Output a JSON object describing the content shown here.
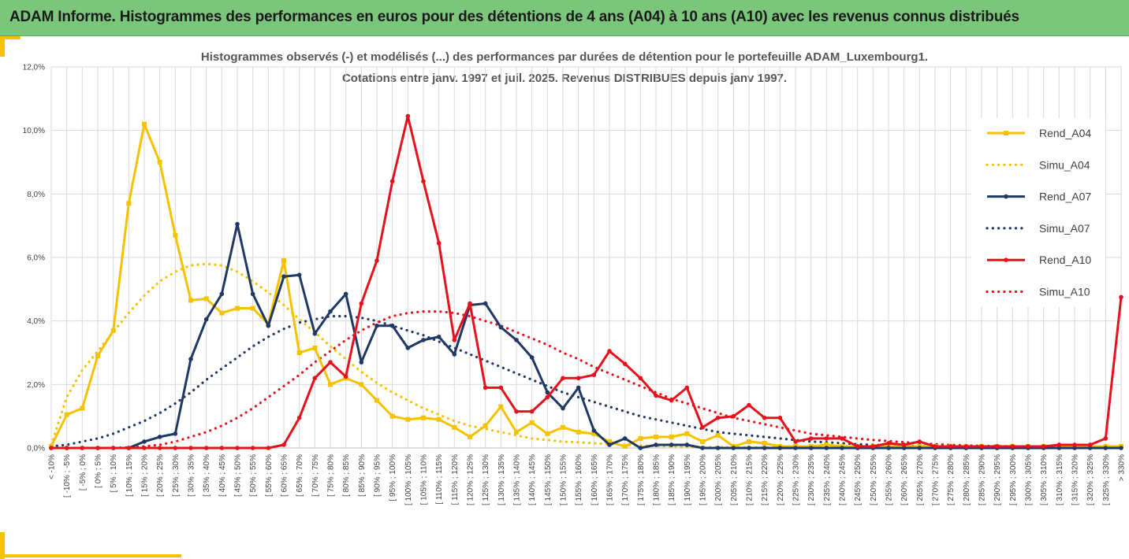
{
  "banner": {
    "title": "ADAM Informe. Histogrammes des performances en euros pour des détentions de 4 ans (A04) à 10 ans (A10) avec les revenus connus distribués"
  },
  "colors": {
    "banner_bg": "#7bc67b",
    "accent": "#f6c200",
    "A04": "#f6c200",
    "A07": "#1f3864",
    "A10": "#e8101a",
    "grid": "#d9d9d9"
  },
  "chart_data": {
    "type": "line",
    "title": "Histogrammes observés (-) et modélisés (...) des performances par durées de détention pour le portefeuille ADAM_Luxembourg1.",
    "subtitle": "Cotations entre janv. 1997 et juil. 2025. Revenus DISTRIBUES depuis janv 1997.",
    "xlabel": "",
    "ylabel": "",
    "ylim": [
      0,
      12
    ],
    "yticks": [
      "0,0%",
      "2,0%",
      "4,0%",
      "6,0%",
      "8,0%",
      "10,0%",
      "12,0%"
    ],
    "grid": true,
    "legend_position": "right",
    "categories": [
      "< -10%",
      "[ -10% ; -5%",
      "[ -5% ; 0%",
      "[ 0% ; 5%",
      "[ 5% ; 10%",
      "[ 10% ; 15%",
      "[ 15% ; 20%",
      "[ 20% ; 25%",
      "[ 25% ; 30%",
      "[ 30% ; 35%",
      "[ 35% ; 40%",
      "[ 40% ; 45%",
      "[ 45% ; 50%",
      "[ 50% ; 55%",
      "[ 55% ; 60%",
      "[ 60% ; 65%",
      "[ 65% ; 70%",
      "[ 70% ; 75%",
      "[ 75% ; 80%",
      "[ 80% ; 85%",
      "[ 85% ; 90%",
      "[ 90% ; 95%",
      "[ 95% ; 100%",
      "[ 100% ; 105%",
      "[ 105% ; 110%",
      "[ 110% ; 115%",
      "[ 115% ; 120%",
      "[ 120% ; 125%",
      "[ 125% ; 130%",
      "[ 130% ; 135%",
      "[ 135% ; 140%",
      "[ 140% ; 145%",
      "[ 145% ; 150%",
      "[ 150% ; 155%",
      "[ 155% ; 160%",
      "[ 160% ; 165%",
      "[ 165% ; 170%",
      "[ 170% ; 175%",
      "[ 175% ; 180%",
      "[ 180% ; 185%",
      "[ 185% ; 190%",
      "[ 190% ; 195%",
      "[ 195% ; 200%",
      "[ 200% ; 205%",
      "[ 205% ; 210%",
      "[ 210% ; 215%",
      "[ 215% ; 220%",
      "[ 220% ; 225%",
      "[ 225% ; 230%",
      "[ 230% ; 235%",
      "[ 235% ; 240%",
      "[ 240% ; 245%",
      "[ 245% ; 250%",
      "[ 250% ; 255%",
      "[ 255% ; 260%",
      "[ 260% ; 265%",
      "[ 265% ; 270%",
      "[ 270% ; 275%",
      "[ 275% ; 280%",
      "[ 280% ; 285%",
      "[ 285% ; 290%",
      "[ 290% ; 295%",
      "[ 295% ; 300%",
      "[ 300% ; 305%",
      "[ 305% ; 310%",
      "[ 310% ; 315%",
      "[ 315% ; 320%",
      "[ 320% ; 325%",
      "[ 325% ; 330%",
      "> 330%"
    ],
    "series": [
      {
        "name": "Rend_A04",
        "style": "solid",
        "marker": "square",
        "color": "#f6c200",
        "values": [
          0.05,
          1.05,
          1.25,
          2.9,
          3.7,
          7.7,
          10.2,
          9.0,
          6.7,
          4.65,
          4.7,
          4.25,
          4.4,
          4.4,
          3.9,
          5.9,
          3.0,
          3.15,
          2.0,
          2.2,
          2.0,
          1.5,
          1.0,
          0.9,
          0.95,
          0.9,
          0.65,
          0.35,
          0.7,
          1.3,
          0.5,
          0.8,
          0.45,
          0.65,
          0.5,
          0.45,
          0.2,
          0.05,
          0.3,
          0.35,
          0.35,
          0.45,
          0.2,
          0.4,
          0.05,
          0.2,
          0.15,
          0.05,
          0.05,
          0.05,
          0.1,
          0.05,
          0.05,
          0.05,
          0.05,
          0.05,
          0.05,
          0.05,
          0.05,
          0.05,
          0.05,
          0.05,
          0.05,
          0.05,
          0.05,
          0.05,
          0.05,
          0.05,
          0.05,
          0.05
        ]
      },
      {
        "name": "Simu_A04",
        "style": "dotted",
        "color": "#f6c200",
        "values": [
          0.1,
          1.6,
          2.45,
          3.05,
          3.65,
          4.25,
          4.8,
          5.25,
          5.55,
          5.75,
          5.8,
          5.75,
          5.55,
          5.25,
          4.9,
          4.5,
          4.05,
          3.65,
          3.2,
          2.8,
          2.4,
          2.05,
          1.75,
          1.5,
          1.25,
          1.05,
          0.85,
          0.7,
          0.6,
          0.5,
          0.4,
          0.3,
          0.25,
          0.2,
          0.18,
          0.15,
          0.12,
          0.1,
          0.08,
          0.06,
          0.05,
          0.04,
          0.03,
          0.03,
          0.02,
          0.02,
          0.02,
          0.01,
          0.01,
          0.01,
          0.01,
          0.01,
          0.01,
          0.01,
          0.01,
          0.01,
          0.01,
          0.01,
          0.01,
          0.01,
          0.01,
          0.01,
          0.01,
          0.01,
          0.01,
          0.01,
          0.01,
          0.01,
          0.01,
          0.01
        ]
      },
      {
        "name": "Rend_A07",
        "style": "solid",
        "marker": "circle",
        "color": "#1f3864",
        "values": [
          0.0,
          0.0,
          0.0,
          0.0,
          0.0,
          0.0,
          0.2,
          0.35,
          0.45,
          2.8,
          4.05,
          4.85,
          7.05,
          4.85,
          3.85,
          5.4,
          5.45,
          3.6,
          4.3,
          4.85,
          2.7,
          3.85,
          3.85,
          3.15,
          3.4,
          3.5,
          2.95,
          4.5,
          4.55,
          3.8,
          3.4,
          2.85,
          1.75,
          1.25,
          1.9,
          0.55,
          0.1,
          0.3,
          0.0,
          0.1,
          0.1,
          0.1,
          0.0,
          0.0,
          0.0,
          0.0,
          0.0,
          0.0,
          0.0,
          0.0,
          0.0,
          0.0,
          0.0,
          0.0,
          0.0,
          0.0,
          0.0,
          0.0,
          0.0,
          0.0,
          0.0,
          0.0,
          0.0,
          0.0,
          0.0,
          0.0,
          0.0,
          0.0,
          0.0,
          0.0
        ]
      },
      {
        "name": "Simu_A07",
        "style": "dotted",
        "color": "#1f3864",
        "values": [
          0.05,
          0.1,
          0.2,
          0.3,
          0.45,
          0.65,
          0.85,
          1.1,
          1.4,
          1.75,
          2.15,
          2.5,
          2.85,
          3.2,
          3.5,
          3.75,
          3.95,
          4.05,
          4.15,
          4.15,
          4.1,
          4.0,
          3.85,
          3.7,
          3.55,
          3.35,
          3.15,
          2.95,
          2.75,
          2.55,
          2.35,
          2.15,
          1.95,
          1.75,
          1.6,
          1.45,
          1.3,
          1.15,
          1.0,
          0.9,
          0.8,
          0.7,
          0.6,
          0.5,
          0.45,
          0.4,
          0.35,
          0.3,
          0.25,
          0.2,
          0.18,
          0.15,
          0.12,
          0.1,
          0.08,
          0.07,
          0.06,
          0.05,
          0.04,
          0.03,
          0.03,
          0.02,
          0.02,
          0.02,
          0.01,
          0.01,
          0.01,
          0.01,
          0.01,
          0.01
        ]
      },
      {
        "name": "Rend_A10",
        "style": "solid",
        "marker": "circle",
        "color": "#e8101a",
        "values": [
          0.0,
          0.0,
          0.0,
          0.0,
          0.0,
          0.0,
          0.0,
          0.0,
          0.0,
          0.0,
          0.0,
          0.0,
          0.0,
          0.0,
          0.0,
          0.1,
          0.95,
          2.2,
          2.7,
          2.25,
          4.55,
          5.9,
          8.4,
          10.45,
          8.4,
          6.45,
          3.4,
          4.55,
          1.9,
          1.9,
          1.15,
          1.15,
          1.6,
          2.2,
          2.2,
          2.3,
          3.05,
          2.65,
          2.2,
          1.65,
          1.5,
          1.9,
          0.65,
          0.95,
          1.0,
          1.35,
          0.95,
          0.95,
          0.2,
          0.3,
          0.3,
          0.3,
          0.05,
          0.05,
          0.15,
          0.1,
          0.2,
          0.05,
          0.05,
          0.05,
          0.05,
          0.05,
          0.05,
          0.05,
          0.05,
          0.1,
          0.1,
          0.1,
          0.3,
          4.75
        ]
      },
      {
        "name": "Simu_A10",
        "style": "dotted",
        "color": "#e8101a",
        "values": [
          0.0,
          0.0,
          0.0,
          0.0,
          0.0,
          0.02,
          0.05,
          0.1,
          0.2,
          0.35,
          0.5,
          0.7,
          0.95,
          1.25,
          1.6,
          1.95,
          2.3,
          2.7,
          3.05,
          3.4,
          3.7,
          3.95,
          4.15,
          4.25,
          4.3,
          4.3,
          4.25,
          4.15,
          4.0,
          3.85,
          3.65,
          3.45,
          3.25,
          3.0,
          2.8,
          2.55,
          2.35,
          2.15,
          1.95,
          1.75,
          1.55,
          1.4,
          1.25,
          1.1,
          0.95,
          0.85,
          0.75,
          0.65,
          0.55,
          0.45,
          0.4,
          0.35,
          0.3,
          0.25,
          0.22,
          0.18,
          0.15,
          0.12,
          0.1,
          0.08,
          0.07,
          0.06,
          0.05,
          0.04,
          0.03,
          0.03,
          0.02,
          0.02,
          0.01,
          0.01
        ]
      }
    ]
  }
}
